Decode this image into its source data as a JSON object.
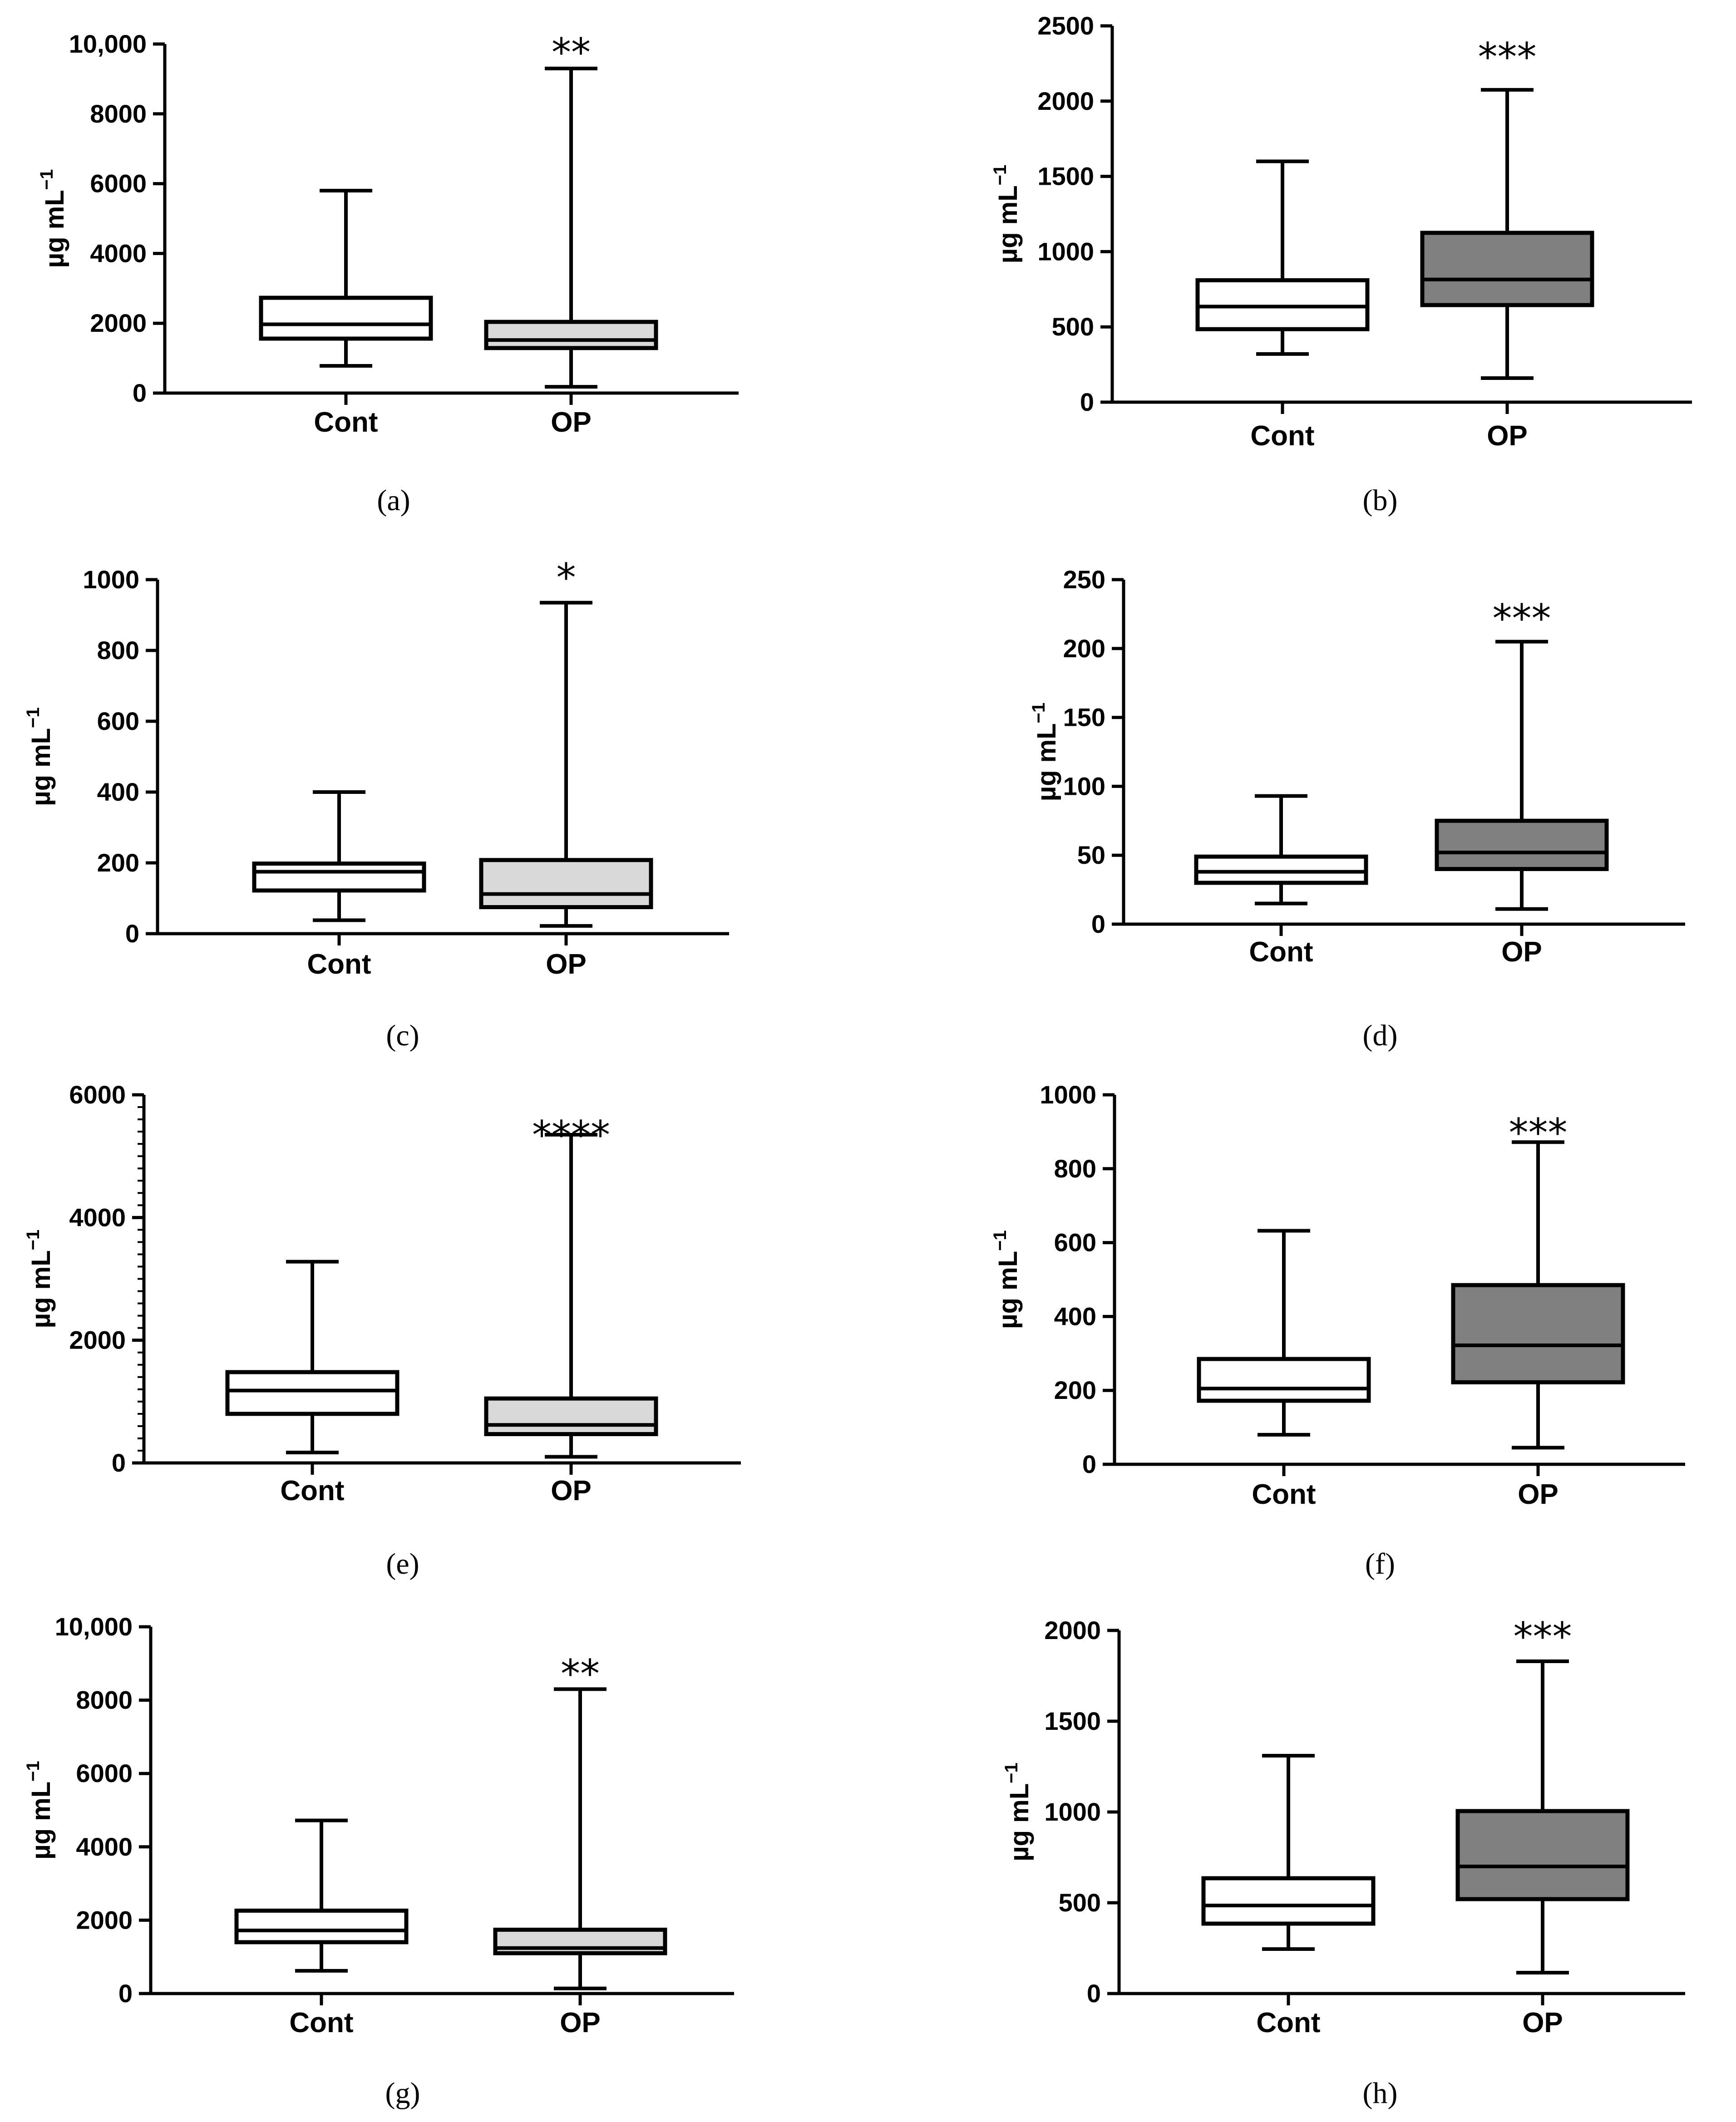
{
  "figure": {
    "colors": {
      "axis": "#000000",
      "cont_fill": "#ffffff",
      "op_light_fill": "#d9d9d9",
      "op_dark_fill": "#808080"
    }
  },
  "chart_data": [
    {
      "id": "a",
      "type": "boxplot",
      "panel_label": "(a)",
      "ylabel": "µg mL",
      "ylabel_sup": "−1",
      "ylim": [
        0,
        10000
      ],
      "yticks": [
        0,
        2000,
        4000,
        6000,
        8000,
        10000
      ],
      "ytick_labels": [
        "0",
        "2000",
        "4000",
        "6000",
        "8000",
        "10,000"
      ],
      "minor_ticks": 0,
      "categories": [
        "Cont",
        "OP"
      ],
      "boxes": [
        {
          "group": "Cont",
          "min": 780,
          "q1": 1560,
          "median": 1970,
          "q3": 2730,
          "max": 5800,
          "fill": "#ffffff"
        },
        {
          "group": "OP",
          "min": 180,
          "q1": 1290,
          "median": 1520,
          "q3": 2040,
          "max": 9300,
          "fill": "#d9d9d9"
        }
      ],
      "significance": "**"
    },
    {
      "id": "b",
      "type": "boxplot",
      "panel_label": "(b)",
      "ylabel": "µg mL",
      "ylabel_sup": "−1",
      "ylim": [
        0,
        2500
      ],
      "yticks": [
        0,
        500,
        1000,
        1500,
        2000,
        2500
      ],
      "ytick_labels": [
        "0",
        "500",
        "1000",
        "1500",
        "2000",
        "2500"
      ],
      "minor_ticks": 0,
      "categories": [
        "Cont",
        "OP"
      ],
      "boxes": [
        {
          "group": "Cont",
          "min": 320,
          "q1": 485,
          "median": 635,
          "q3": 810,
          "max": 1600,
          "fill": "#ffffff"
        },
        {
          "group": "OP",
          "min": 160,
          "q1": 645,
          "median": 815,
          "q3": 1125,
          "max": 2075,
          "fill": "#808080"
        }
      ],
      "significance": "***"
    },
    {
      "id": "c",
      "type": "boxplot",
      "panel_label": "(c)",
      "ylabel": "µg mL",
      "ylabel_sup": "−1",
      "ylim": [
        0,
        1000
      ],
      "yticks": [
        0,
        200,
        400,
        600,
        800,
        1000
      ],
      "ytick_labels": [
        "0",
        "200",
        "400",
        "600",
        "800",
        "1000"
      ],
      "minor_ticks": 0,
      "categories": [
        "Cont",
        "OP"
      ],
      "boxes": [
        {
          "group": "Cont",
          "min": 38,
          "q1": 122,
          "median": 175,
          "q3": 198,
          "max": 400,
          "fill": "#ffffff"
        },
        {
          "group": "OP",
          "min": 22,
          "q1": 75,
          "median": 112,
          "q3": 208,
          "max": 935,
          "fill": "#d9d9d9"
        }
      ],
      "significance": "*"
    },
    {
      "id": "d",
      "type": "boxplot",
      "panel_label": "(d)",
      "ylabel": "µg mL",
      "ylabel_sup": "−1",
      "ylim": [
        0,
        250
      ],
      "yticks": [
        0,
        50,
        100,
        150,
        200,
        250
      ],
      "ytick_labels": [
        "0",
        "50",
        "100",
        "150",
        "200",
        "250"
      ],
      "minor_ticks": 0,
      "categories": [
        "Cont",
        "OP"
      ],
      "boxes": [
        {
          "group": "Cont",
          "min": 15,
          "q1": 30,
          "median": 38,
          "q3": 49,
          "max": 93,
          "fill": "#ffffff"
        },
        {
          "group": "OP",
          "min": 11,
          "q1": 40,
          "median": 52,
          "q3": 75,
          "max": 205,
          "fill": "#808080"
        }
      ],
      "significance": "***"
    },
    {
      "id": "e",
      "type": "boxplot",
      "panel_label": "(e)",
      "ylabel": "µg mL",
      "ylabel_sup": "−1",
      "ylim": [
        0,
        6000
      ],
      "yticks": [
        0,
        2000,
        4000,
        6000
      ],
      "ytick_labels": [
        "0",
        "2000",
        "4000",
        "6000"
      ],
      "minor_ticks": 9,
      "categories": [
        "Cont",
        "OP"
      ],
      "boxes": [
        {
          "group": "Cont",
          "min": 170,
          "q1": 800,
          "median": 1180,
          "q3": 1480,
          "max": 3280,
          "fill": "#ffffff"
        },
        {
          "group": "OP",
          "min": 100,
          "q1": 470,
          "median": 620,
          "q3": 1050,
          "max": 5350,
          "fill": "#d9d9d9"
        }
      ],
      "significance": "****"
    },
    {
      "id": "f",
      "type": "boxplot",
      "panel_label": "(f)",
      "ylabel": "µg mL",
      "ylabel_sup": "−1",
      "ylim": [
        0,
        1000
      ],
      "yticks": [
        0,
        200,
        400,
        600,
        800,
        1000
      ],
      "ytick_labels": [
        "0",
        "200",
        "400",
        "600",
        "800",
        "1000"
      ],
      "minor_ticks": 0,
      "categories": [
        "Cont",
        "OP"
      ],
      "boxes": [
        {
          "group": "Cont",
          "min": 80,
          "q1": 172,
          "median": 205,
          "q3": 285,
          "max": 632,
          "fill": "#ffffff"
        },
        {
          "group": "OP",
          "min": 45,
          "q1": 222,
          "median": 322,
          "q3": 485,
          "max": 872,
          "fill": "#808080"
        }
      ],
      "significance": "***"
    },
    {
      "id": "g",
      "type": "boxplot",
      "panel_label": "(g)",
      "ylabel": "µg mL",
      "ylabel_sup": "−1",
      "ylim": [
        0,
        10000
      ],
      "yticks": [
        0,
        2000,
        4000,
        6000,
        8000,
        10000
      ],
      "ytick_labels": [
        "0",
        "2000",
        "4000",
        "6000",
        "8000",
        "10,000"
      ],
      "minor_ticks": 0,
      "categories": [
        "Cont",
        "OP"
      ],
      "boxes": [
        {
          "group": "Cont",
          "min": 620,
          "q1": 1400,
          "median": 1720,
          "q3": 2260,
          "max": 4720,
          "fill": "#ffffff"
        },
        {
          "group": "OP",
          "min": 140,
          "q1": 1100,
          "median": 1240,
          "q3": 1740,
          "max": 8300,
          "fill": "#d9d9d9"
        }
      ],
      "significance": "**"
    },
    {
      "id": "h",
      "type": "boxplot",
      "panel_label": "(h)",
      "ylabel": "µg mL",
      "ylabel_sup": "−1",
      "ylim": [
        0,
        2000
      ],
      "yticks": [
        0,
        500,
        1000,
        1500,
        2000
      ],
      "ytick_labels": [
        "0",
        "500",
        "1000",
        "1500",
        "2000"
      ],
      "minor_ticks": 0,
      "categories": [
        "Cont",
        "OP"
      ],
      "boxes": [
        {
          "group": "Cont",
          "min": 245,
          "q1": 385,
          "median": 485,
          "q3": 635,
          "max": 1310,
          "fill": "#ffffff"
        },
        {
          "group": "OP",
          "min": 115,
          "q1": 520,
          "median": 700,
          "q3": 1005,
          "max": 1830,
          "fill": "#808080"
        }
      ],
      "significance": "***"
    }
  ]
}
